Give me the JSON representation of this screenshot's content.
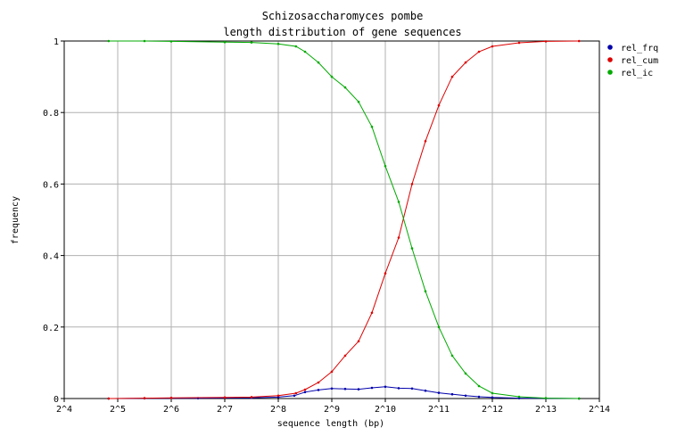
{
  "chart_data": {
    "type": "line",
    "title": "Schizosaccharomyces pombe",
    "subtitle": "length distribution of gene sequences",
    "xlabel": "sequence length (bp)",
    "ylabel": "frequency",
    "x_scale": "log2",
    "x_ticks": [
      4,
      5,
      6,
      7,
      8,
      9,
      10,
      11,
      12,
      13,
      14
    ],
    "x_tick_labels": [
      "2^4",
      "2^5",
      "2^6",
      "2^7",
      "2^8",
      "2^9",
      "2^10",
      "2^11",
      "2^12",
      "2^13",
      "2^14"
    ],
    "y_ticks": [
      0,
      0.2,
      0.4,
      0.6,
      0.8,
      1
    ],
    "y_tick_labels": [
      "0",
      "0.2",
      "0.4",
      "0.6",
      "0.8",
      "1"
    ],
    "xlim": [
      4,
      14
    ],
    "ylim": [
      0,
      1
    ],
    "grid": true,
    "legend_position": "top-right",
    "series": [
      {
        "name": "rel_frq",
        "color": "#0000aa",
        "points": [
          [
            4.83,
            0.0
          ],
          [
            5.5,
            0.0005
          ],
          [
            6.5,
            0.001
          ],
          [
            7.5,
            0.002
          ],
          [
            8.0,
            0.004
          ],
          [
            8.3,
            0.008
          ],
          [
            8.5,
            0.018
          ],
          [
            8.75,
            0.024
          ],
          [
            9.0,
            0.028
          ],
          [
            9.25,
            0.027
          ],
          [
            9.5,
            0.026
          ],
          [
            9.75,
            0.03
          ],
          [
            10.0,
            0.033
          ],
          [
            10.25,
            0.029
          ],
          [
            10.5,
            0.028
          ],
          [
            10.75,
            0.022
          ],
          [
            11.0,
            0.016
          ],
          [
            11.25,
            0.012
          ],
          [
            11.5,
            0.008
          ],
          [
            11.75,
            0.005
          ],
          [
            12.0,
            0.003
          ],
          [
            12.5,
            0.001
          ],
          [
            13.0,
            0.0005
          ],
          [
            13.62,
            0.0
          ]
        ]
      },
      {
        "name": "rel_cum",
        "color": "#dd0000",
        "points": [
          [
            4.83,
            0.0
          ],
          [
            5.5,
            0.001
          ],
          [
            6.0,
            0.002
          ],
          [
            7.0,
            0.003
          ],
          [
            7.5,
            0.004
          ],
          [
            8.0,
            0.008
          ],
          [
            8.33,
            0.015
          ],
          [
            8.5,
            0.025
          ],
          [
            8.75,
            0.045
          ],
          [
            9.0,
            0.075
          ],
          [
            9.25,
            0.12
          ],
          [
            9.5,
            0.16
          ],
          [
            9.75,
            0.24
          ],
          [
            10.0,
            0.35
          ],
          [
            10.25,
            0.45
          ],
          [
            10.5,
            0.6
          ],
          [
            10.75,
            0.72
          ],
          [
            11.0,
            0.82
          ],
          [
            11.25,
            0.9
          ],
          [
            11.5,
            0.94
          ],
          [
            11.75,
            0.97
          ],
          [
            12.0,
            0.985
          ],
          [
            12.5,
            0.995
          ],
          [
            13.0,
            0.999
          ],
          [
            13.62,
            1.0
          ]
        ]
      },
      {
        "name": "rel_ic",
        "color": "#00aa00",
        "points": [
          [
            4.83,
            1.0
          ],
          [
            5.5,
            1.0
          ],
          [
            6.0,
            0.999
          ],
          [
            7.0,
            0.997
          ],
          [
            7.5,
            0.996
          ],
          [
            8.0,
            0.992
          ],
          [
            8.33,
            0.985
          ],
          [
            8.5,
            0.97
          ],
          [
            8.75,
            0.94
          ],
          [
            9.0,
            0.9
          ],
          [
            9.25,
            0.87
          ],
          [
            9.5,
            0.83
          ],
          [
            9.75,
            0.76
          ],
          [
            10.0,
            0.65
          ],
          [
            10.25,
            0.55
          ],
          [
            10.5,
            0.42
          ],
          [
            10.75,
            0.3
          ],
          [
            11.0,
            0.2
          ],
          [
            11.25,
            0.12
          ],
          [
            11.5,
            0.07
          ],
          [
            11.75,
            0.035
          ],
          [
            12.0,
            0.015
          ],
          [
            12.5,
            0.005
          ],
          [
            13.0,
            0.001
          ],
          [
            13.62,
            0.0
          ]
        ]
      }
    ]
  }
}
